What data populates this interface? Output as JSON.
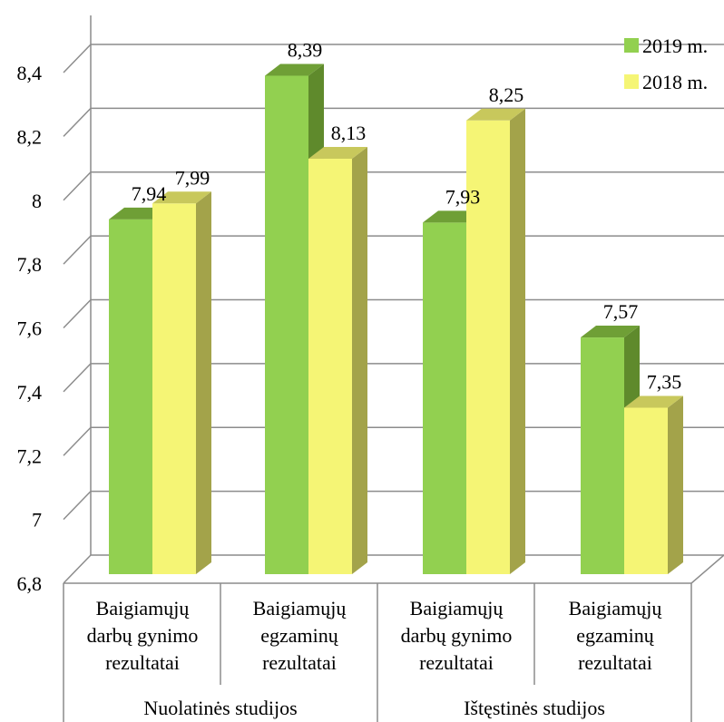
{
  "chart_data": {
    "type": "bar",
    "style": "3d-clustered-column",
    "title": "",
    "xlabel": "",
    "ylabel": "",
    "ylim": [
      6.8,
      8.4
    ],
    "yticks": [
      "6,8",
      "7",
      "7,2",
      "7,4",
      "7,6",
      "7,8",
      "8",
      "8,2",
      "8,4"
    ],
    "ytick_values": [
      6.8,
      7.0,
      7.2,
      7.4,
      7.6,
      7.8,
      8.0,
      8.2,
      8.4
    ],
    "grid": true,
    "legend_position": "top-right",
    "categories": [
      [
        "Baigiamųjų",
        "darbų gynimo",
        "rezultatai"
      ],
      [
        "Baigiamųjų",
        "egzaminų",
        "rezultatai"
      ],
      [
        "Baigiamųjų",
        "darbų gynimo",
        "rezultatai"
      ],
      [
        "Baigiamųjų",
        "egzaminų",
        "rezultatai"
      ]
    ],
    "groups": [
      "Nuolatinės studijos",
      "Ištęstinės studijos"
    ],
    "series": [
      {
        "name": "2019 m.",
        "values": [
          7.94,
          8.39,
          7.93,
          7.57
        ],
        "labels": [
          "7,94",
          "8,39",
          "7,93",
          "7,57"
        ],
        "color": "#92d050",
        "side_color": "#5f8a2c",
        "top_color": "#6f9f36"
      },
      {
        "name": "2018 m.",
        "values": [
          7.99,
          8.13,
          8.25,
          7.35
        ],
        "labels": [
          "7,99",
          "8,13",
          "8,25",
          "7,35"
        ],
        "color": "#f5f575",
        "side_color": "#a3a34a",
        "top_color": "#c8c85c"
      }
    ]
  }
}
